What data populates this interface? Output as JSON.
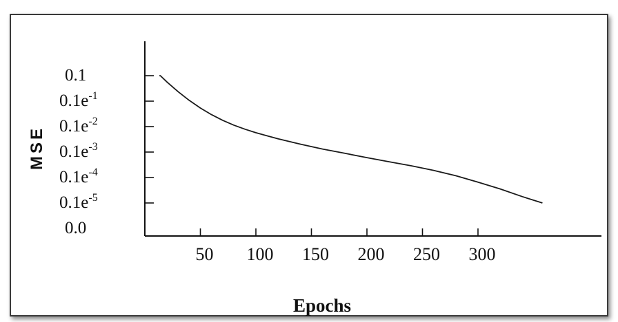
{
  "chart_data": {
    "type": "line",
    "xlabel": "Epochs",
    "ylabel": "MSE",
    "x_ticks": [
      50,
      100,
      150,
      200,
      250,
      300
    ],
    "y_ticks": [
      {
        "base": "0.1",
        "exp": ""
      },
      {
        "base": "0.1e",
        "exp": "-1"
      },
      {
        "base": "0.1e",
        "exp": "-2"
      },
      {
        "base": "0.1e",
        "exp": "-3"
      },
      {
        "base": "0.1e",
        "exp": "-4"
      },
      {
        "base": "0.1e",
        "exp": "-5"
      },
      {
        "base": "0.0",
        "exp": ""
      }
    ],
    "xlim": [
      0,
      360
    ],
    "ylim_levels": [
      0,
      7
    ],
    "grid": false,
    "series": [
      {
        "x": [
          10,
          14,
          20,
          30,
          40,
          50,
          60,
          70,
          80,
          90,
          100,
          120,
          140,
          160,
          180,
          200,
          220,
          240,
          260,
          280,
          300,
          320,
          340,
          358
        ],
        "y": [
          6.0,
          6.0,
          5.75,
          5.37,
          5.03,
          4.73,
          4.47,
          4.25,
          4.06,
          3.9,
          3.76,
          3.52,
          3.31,
          3.12,
          2.95,
          2.78,
          2.62,
          2.46,
          2.28,
          2.07,
          1.82,
          1.55,
          1.25,
          1.0
        ]
      }
    ]
  }
}
